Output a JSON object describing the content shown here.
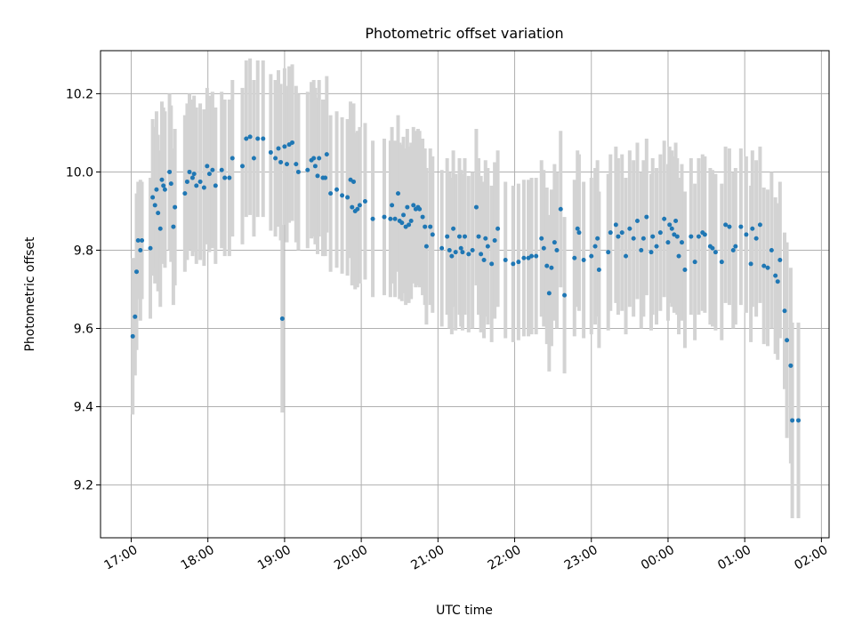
{
  "chart_data": {
    "type": "scatter",
    "title": "Photometric offset variation",
    "xlabel": "UTC time",
    "ylabel": "Photometric offset",
    "x_unit": "hours after 17:00 UTC",
    "xlim": [
      -0.4,
      9.1
    ],
    "ylim": [
      9.065,
      10.31
    ],
    "xticks": [
      {
        "value": 0,
        "label": "17:00"
      },
      {
        "value": 1,
        "label": "18:00"
      },
      {
        "value": 2,
        "label": "19:00"
      },
      {
        "value": 3,
        "label": "20:00"
      },
      {
        "value": 4,
        "label": "21:00"
      },
      {
        "value": 5,
        "label": "22:00"
      },
      {
        "value": 6,
        "label": "23:00"
      },
      {
        "value": 7,
        "label": "00:00"
      },
      {
        "value": 8,
        "label": "01:00"
      },
      {
        "value": 9,
        "label": "02:00"
      }
    ],
    "yticks": [
      {
        "value": 9.2,
        "label": "9.2"
      },
      {
        "value": 9.4,
        "label": "9.4"
      },
      {
        "value": 9.6,
        "label": "9.6"
      },
      {
        "value": 9.8,
        "label": "9.8"
      },
      {
        "value": 10.0,
        "label": "10.0"
      },
      {
        "value": 10.2,
        "label": "10.2"
      }
    ],
    "grid": true,
    "colors": {
      "point": "#1f77b4",
      "errorbar": "#d3d3d3",
      "grid": "#b0b0b0"
    },
    "series": [
      {
        "points": [
          [
            0.02,
            9.58,
            0.2
          ],
          [
            0.05,
            9.63,
            0.15
          ],
          [
            0.07,
            9.745,
            0.2
          ],
          [
            0.09,
            9.825,
            0.15
          ],
          [
            0.12,
            9.8,
            0.18
          ],
          [
            0.14,
            9.825,
            0.15
          ],
          [
            0.25,
            9.805,
            0.18
          ],
          [
            0.28,
            9.935,
            0.2
          ],
          [
            0.31,
            9.915,
            0.2
          ],
          [
            0.33,
            9.955,
            0.2
          ],
          [
            0.35,
            9.895,
            0.2
          ],
          [
            0.38,
            9.855,
            0.2
          ],
          [
            0.4,
            9.98,
            0.2
          ],
          [
            0.42,
            9.965,
            0.2
          ],
          [
            0.44,
            9.955,
            0.2
          ],
          [
            0.5,
            10.0,
            0.2
          ],
          [
            0.52,
            9.97,
            0.2
          ],
          [
            0.55,
            9.86,
            0.2
          ],
          [
            0.57,
            9.91,
            0.2
          ],
          [
            0.7,
            9.945,
            0.2
          ],
          [
            0.73,
            9.975,
            0.2
          ],
          [
            0.76,
            10.0,
            0.2
          ],
          [
            0.8,
            9.985,
            0.2
          ],
          [
            0.82,
            9.995,
            0.2
          ],
          [
            0.85,
            9.965,
            0.2
          ],
          [
            0.9,
            9.975,
            0.2
          ],
          [
            0.95,
            9.96,
            0.2
          ],
          [
            0.99,
            10.015,
            0.2
          ],
          [
            1.02,
            9.995,
            0.2
          ],
          [
            1.06,
            10.005,
            0.2
          ],
          [
            1.1,
            9.965,
            0.2
          ],
          [
            1.18,
            10.005,
            0.2
          ],
          [
            1.22,
            9.985,
            0.2
          ],
          [
            1.28,
            9.985,
            0.2
          ],
          [
            1.32,
            10.035,
            0.2
          ],
          [
            1.45,
            10.015,
            0.2
          ],
          [
            1.5,
            10.085,
            0.2
          ],
          [
            1.55,
            10.09,
            0.2
          ],
          [
            1.6,
            10.035,
            0.2
          ],
          [
            1.65,
            10.085,
            0.2
          ],
          [
            1.72,
            10.085,
            0.2
          ],
          [
            1.82,
            10.05,
            0.2
          ],
          [
            1.88,
            10.035,
            0.2
          ],
          [
            1.92,
            10.06,
            0.2
          ],
          [
            1.95,
            10.025,
            0.2
          ],
          [
            1.97,
            9.625,
            0.24
          ],
          [
            2.0,
            10.065,
            0.2
          ],
          [
            2.03,
            10.02,
            0.2
          ],
          [
            2.06,
            10.07,
            0.2
          ],
          [
            2.1,
            10.075,
            0.2
          ],
          [
            2.15,
            10.02,
            0.2
          ],
          [
            2.18,
            10.0,
            0.2
          ],
          [
            2.3,
            10.005,
            0.2
          ],
          [
            2.35,
            10.03,
            0.2
          ],
          [
            2.38,
            10.035,
            0.2
          ],
          [
            2.4,
            10.015,
            0.2
          ],
          [
            2.43,
            9.99,
            0.2
          ],
          [
            2.45,
            10.035,
            0.2
          ],
          [
            2.5,
            9.985,
            0.2
          ],
          [
            2.53,
            9.985,
            0.2
          ],
          [
            2.55,
            10.045,
            0.2
          ],
          [
            2.6,
            9.945,
            0.2
          ],
          [
            2.68,
            9.955,
            0.2
          ],
          [
            2.75,
            9.94,
            0.2
          ],
          [
            2.82,
            9.935,
            0.2
          ],
          [
            2.86,
            9.98,
            0.2
          ],
          [
            2.88,
            9.91,
            0.2
          ],
          [
            2.9,
            9.975,
            0.2
          ],
          [
            2.92,
            9.9,
            0.2
          ],
          [
            2.95,
            9.905,
            0.2
          ],
          [
            2.98,
            9.915,
            0.2
          ],
          [
            3.05,
            9.925,
            0.2
          ],
          [
            3.15,
            9.88,
            0.2
          ],
          [
            3.3,
            9.885,
            0.2
          ],
          [
            3.38,
            9.88,
            0.2
          ],
          [
            3.4,
            9.915,
            0.2
          ],
          [
            3.44,
            9.88,
            0.2
          ],
          [
            3.48,
            9.945,
            0.2
          ],
          [
            3.5,
            9.875,
            0.2
          ],
          [
            3.53,
            9.87,
            0.2
          ],
          [
            3.55,
            9.89,
            0.2
          ],
          [
            3.58,
            9.86,
            0.2
          ],
          [
            3.6,
            9.91,
            0.2
          ],
          [
            3.62,
            9.865,
            0.2
          ],
          [
            3.65,
            9.875,
            0.2
          ],
          [
            3.68,
            9.915,
            0.2
          ],
          [
            3.71,
            9.905,
            0.2
          ],
          [
            3.74,
            9.91,
            0.2
          ],
          [
            3.76,
            9.905,
            0.2
          ],
          [
            3.8,
            9.885,
            0.2
          ],
          [
            3.83,
            9.86,
            0.2
          ],
          [
            3.85,
            9.81,
            0.2
          ],
          [
            3.9,
            9.86,
            0.2
          ],
          [
            3.93,
            9.84,
            0.2
          ],
          [
            4.05,
            9.805,
            0.2
          ],
          [
            4.12,
            9.835,
            0.2
          ],
          [
            4.15,
            9.8,
            0.2
          ],
          [
            4.18,
            9.785,
            0.2
          ],
          [
            4.2,
            9.855,
            0.2
          ],
          [
            4.23,
            9.795,
            0.2
          ],
          [
            4.28,
            9.835,
            0.2
          ],
          [
            4.3,
            9.805,
            0.2
          ],
          [
            4.32,
            9.795,
            0.2
          ],
          [
            4.35,
            9.835,
            0.2
          ],
          [
            4.4,
            9.79,
            0.2
          ],
          [
            4.45,
            9.8,
            0.2
          ],
          [
            4.5,
            9.91,
            0.2
          ],
          [
            4.53,
            9.835,
            0.2
          ],
          [
            4.56,
            9.79,
            0.2
          ],
          [
            4.6,
            9.775,
            0.2
          ],
          [
            4.62,
            9.83,
            0.2
          ],
          [
            4.65,
            9.81,
            0.2
          ],
          [
            4.7,
            9.765,
            0.2
          ],
          [
            4.74,
            9.825,
            0.2
          ],
          [
            4.78,
            9.855,
            0.2
          ],
          [
            4.88,
            9.775,
            0.2
          ],
          [
            4.98,
            9.765,
            0.2
          ],
          [
            5.05,
            9.77,
            0.2
          ],
          [
            5.12,
            9.78,
            0.2
          ],
          [
            5.18,
            9.78,
            0.2
          ],
          [
            5.22,
            9.785,
            0.2
          ],
          [
            5.28,
            9.785,
            0.2
          ],
          [
            5.35,
            9.83,
            0.2
          ],
          [
            5.38,
            9.805,
            0.2
          ],
          [
            5.42,
            9.76,
            0.2
          ],
          [
            5.45,
            9.69,
            0.2
          ],
          [
            5.48,
            9.755,
            0.2
          ],
          [
            5.52,
            9.82,
            0.2
          ],
          [
            5.55,
            9.8,
            0.2
          ],
          [
            5.6,
            9.905,
            0.2
          ],
          [
            5.65,
            9.685,
            0.2
          ],
          [
            5.78,
            9.78,
            0.2
          ],
          [
            5.82,
            9.855,
            0.2
          ],
          [
            5.84,
            9.845,
            0.2
          ],
          [
            5.9,
            9.775,
            0.2
          ],
          [
            6.0,
            9.785,
            0.2
          ],
          [
            6.05,
            9.81,
            0.2
          ],
          [
            6.08,
            9.83,
            0.2
          ],
          [
            6.1,
            9.75,
            0.2
          ],
          [
            6.22,
            9.795,
            0.2
          ],
          [
            6.25,
            9.845,
            0.2
          ],
          [
            6.32,
            9.865,
            0.2
          ],
          [
            6.35,
            9.835,
            0.2
          ],
          [
            6.4,
            9.845,
            0.2
          ],
          [
            6.45,
            9.785,
            0.2
          ],
          [
            6.5,
            9.855,
            0.2
          ],
          [
            6.55,
            9.83,
            0.2
          ],
          [
            6.6,
            9.875,
            0.2
          ],
          [
            6.65,
            9.8,
            0.2
          ],
          [
            6.68,
            9.83,
            0.2
          ],
          [
            6.72,
            9.885,
            0.2
          ],
          [
            6.78,
            9.795,
            0.2
          ],
          [
            6.8,
            9.835,
            0.2
          ],
          [
            6.85,
            9.81,
            0.2
          ],
          [
            6.9,
            9.845,
            0.2
          ],
          [
            6.95,
            9.88,
            0.2
          ],
          [
            7.0,
            9.82,
            0.2
          ],
          [
            7.02,
            9.865,
            0.2
          ],
          [
            7.05,
            9.855,
            0.2
          ],
          [
            7.08,
            9.84,
            0.2
          ],
          [
            7.1,
            9.875,
            0.2
          ],
          [
            7.12,
            9.835,
            0.2
          ],
          [
            7.14,
            9.785,
            0.2
          ],
          [
            7.18,
            9.82,
            0.2
          ],
          [
            7.22,
            9.75,
            0.2
          ],
          [
            7.3,
            9.835,
            0.2
          ],
          [
            7.35,
            9.77,
            0.2
          ],
          [
            7.4,
            9.835,
            0.2
          ],
          [
            7.45,
            9.845,
            0.2
          ],
          [
            7.48,
            9.84,
            0.2
          ],
          [
            7.55,
            9.81,
            0.2
          ],
          [
            7.58,
            9.805,
            0.2
          ],
          [
            7.62,
            9.795,
            0.2
          ],
          [
            7.7,
            9.77,
            0.2
          ],
          [
            7.75,
            9.865,
            0.2
          ],
          [
            7.8,
            9.86,
            0.2
          ],
          [
            7.85,
            9.8,
            0.2
          ],
          [
            7.88,
            9.81,
            0.2
          ],
          [
            7.95,
            9.86,
            0.2
          ],
          [
            8.02,
            9.84,
            0.2
          ],
          [
            8.08,
            9.765,
            0.2
          ],
          [
            8.1,
            9.855,
            0.2
          ],
          [
            8.15,
            9.83,
            0.2
          ],
          [
            8.2,
            9.865,
            0.2
          ],
          [
            8.25,
            9.76,
            0.2
          ],
          [
            8.3,
            9.755,
            0.2
          ],
          [
            8.35,
            9.8,
            0.2
          ],
          [
            8.4,
            9.735,
            0.2
          ],
          [
            8.43,
            9.72,
            0.2
          ],
          [
            8.46,
            9.775,
            0.2
          ],
          [
            8.52,
            9.645,
            0.2
          ],
          [
            8.55,
            9.57,
            0.25
          ],
          [
            8.6,
            9.505,
            0.25
          ],
          [
            8.62,
            9.365,
            0.25
          ],
          [
            8.7,
            9.365,
            0.25
          ]
        ]
      }
    ]
  }
}
